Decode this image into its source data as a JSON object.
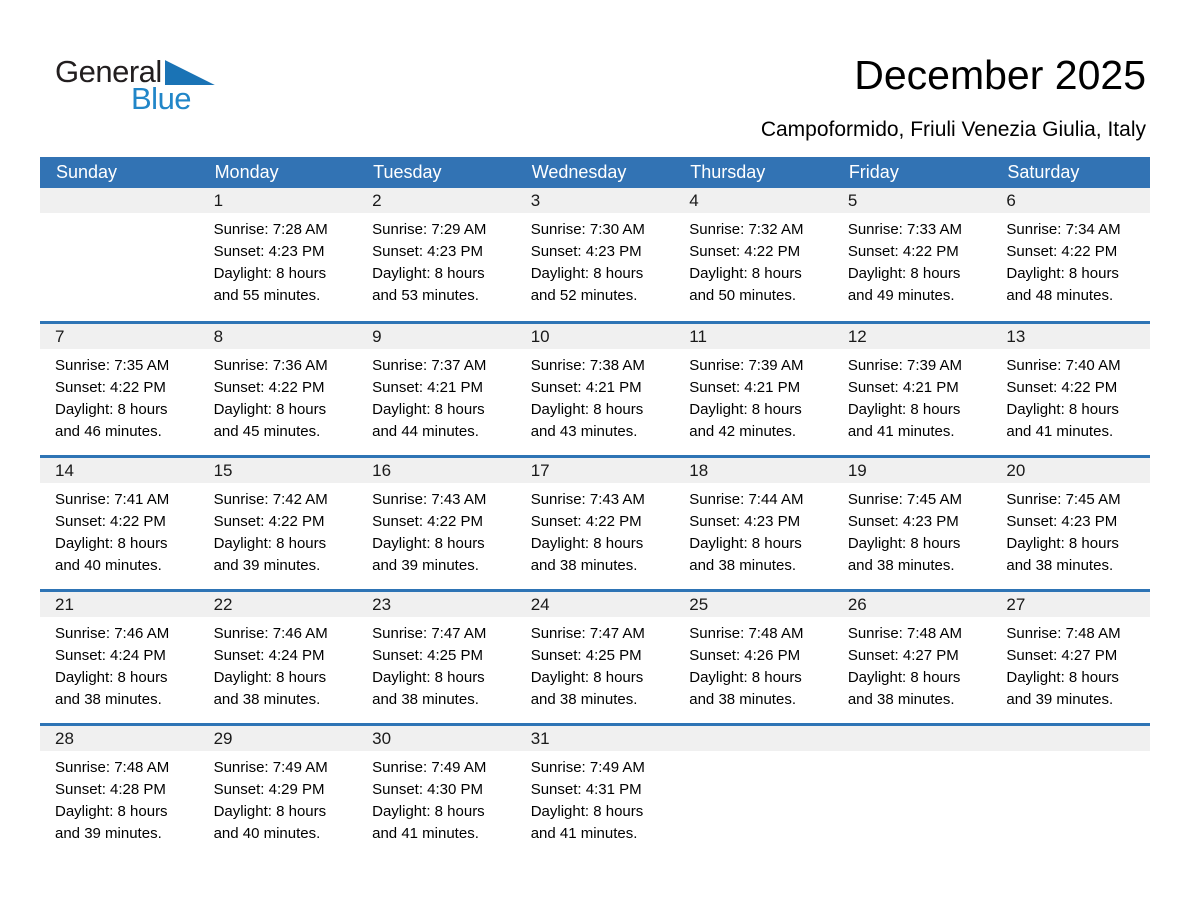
{
  "logo": {
    "general": "General",
    "blue": "Blue"
  },
  "header": {
    "title": "December 2025",
    "subtitle": "Campoformido, Friuli Venezia Giulia, Italy"
  },
  "calendar": {
    "weekdays": [
      "Sunday",
      "Monday",
      "Tuesday",
      "Wednesday",
      "Thursday",
      "Friday",
      "Saturday"
    ],
    "labels": {
      "sunrise": "Sunrise: ",
      "sunset": "Sunset: ",
      "daylight": "Daylight: "
    },
    "weeks": [
      [
        {
          "day": "",
          "sunrise": "",
          "sunset": "",
          "daylight": ""
        },
        {
          "day": "1",
          "sunrise": "7:28 AM",
          "sunset": "4:23 PM",
          "daylight": "8 hours and 55 minutes."
        },
        {
          "day": "2",
          "sunrise": "7:29 AM",
          "sunset": "4:23 PM",
          "daylight": "8 hours and 53 minutes."
        },
        {
          "day": "3",
          "sunrise": "7:30 AM",
          "sunset": "4:23 PM",
          "daylight": "8 hours and 52 minutes."
        },
        {
          "day": "4",
          "sunrise": "7:32 AM",
          "sunset": "4:22 PM",
          "daylight": "8 hours and 50 minutes."
        },
        {
          "day": "5",
          "sunrise": "7:33 AM",
          "sunset": "4:22 PM",
          "daylight": "8 hours and 49 minutes."
        },
        {
          "day": "6",
          "sunrise": "7:34 AM",
          "sunset": "4:22 PM",
          "daylight": "8 hours and 48 minutes."
        }
      ],
      [
        {
          "day": "7",
          "sunrise": "7:35 AM",
          "sunset": "4:22 PM",
          "daylight": "8 hours and 46 minutes."
        },
        {
          "day": "8",
          "sunrise": "7:36 AM",
          "sunset": "4:22 PM",
          "daylight": "8 hours and 45 minutes."
        },
        {
          "day": "9",
          "sunrise": "7:37 AM",
          "sunset": "4:21 PM",
          "daylight": "8 hours and 44 minutes."
        },
        {
          "day": "10",
          "sunrise": "7:38 AM",
          "sunset": "4:21 PM",
          "daylight": "8 hours and 43 minutes."
        },
        {
          "day": "11",
          "sunrise": "7:39 AM",
          "sunset": "4:21 PM",
          "daylight": "8 hours and 42 minutes."
        },
        {
          "day": "12",
          "sunrise": "7:39 AM",
          "sunset": "4:21 PM",
          "daylight": "8 hours and 41 minutes."
        },
        {
          "day": "13",
          "sunrise": "7:40 AM",
          "sunset": "4:22 PM",
          "daylight": "8 hours and 41 minutes."
        }
      ],
      [
        {
          "day": "14",
          "sunrise": "7:41 AM",
          "sunset": "4:22 PM",
          "daylight": "8 hours and 40 minutes."
        },
        {
          "day": "15",
          "sunrise": "7:42 AM",
          "sunset": "4:22 PM",
          "daylight": "8 hours and 39 minutes."
        },
        {
          "day": "16",
          "sunrise": "7:43 AM",
          "sunset": "4:22 PM",
          "daylight": "8 hours and 39 minutes."
        },
        {
          "day": "17",
          "sunrise": "7:43 AM",
          "sunset": "4:22 PM",
          "daylight": "8 hours and 38 minutes."
        },
        {
          "day": "18",
          "sunrise": "7:44 AM",
          "sunset": "4:23 PM",
          "daylight": "8 hours and 38 minutes."
        },
        {
          "day": "19",
          "sunrise": "7:45 AM",
          "sunset": "4:23 PM",
          "daylight": "8 hours and 38 minutes."
        },
        {
          "day": "20",
          "sunrise": "7:45 AM",
          "sunset": "4:23 PM",
          "daylight": "8 hours and 38 minutes."
        }
      ],
      [
        {
          "day": "21",
          "sunrise": "7:46 AM",
          "sunset": "4:24 PM",
          "daylight": "8 hours and 38 minutes."
        },
        {
          "day": "22",
          "sunrise": "7:46 AM",
          "sunset": "4:24 PM",
          "daylight": "8 hours and 38 minutes."
        },
        {
          "day": "23",
          "sunrise": "7:47 AM",
          "sunset": "4:25 PM",
          "daylight": "8 hours and 38 minutes."
        },
        {
          "day": "24",
          "sunrise": "7:47 AM",
          "sunset": "4:25 PM",
          "daylight": "8 hours and 38 minutes."
        },
        {
          "day": "25",
          "sunrise": "7:48 AM",
          "sunset": "4:26 PM",
          "daylight": "8 hours and 38 minutes."
        },
        {
          "day": "26",
          "sunrise": "7:48 AM",
          "sunset": "4:27 PM",
          "daylight": "8 hours and 38 minutes."
        },
        {
          "day": "27",
          "sunrise": "7:48 AM",
          "sunset": "4:27 PM",
          "daylight": "8 hours and 39 minutes."
        }
      ],
      [
        {
          "day": "28",
          "sunrise": "7:48 AM",
          "sunset": "4:28 PM",
          "daylight": "8 hours and 39 minutes."
        },
        {
          "day": "29",
          "sunrise": "7:49 AM",
          "sunset": "4:29 PM",
          "daylight": "8 hours and 40 minutes."
        },
        {
          "day": "30",
          "sunrise": "7:49 AM",
          "sunset": "4:30 PM",
          "daylight": "8 hours and 41 minutes."
        },
        {
          "day": "31",
          "sunrise": "7:49 AM",
          "sunset": "4:31 PM",
          "daylight": "8 hours and 41 minutes."
        },
        {
          "day": "",
          "sunrise": "",
          "sunset": "",
          "daylight": ""
        },
        {
          "day": "",
          "sunrise": "",
          "sunset": "",
          "daylight": ""
        },
        {
          "day": "",
          "sunrise": "",
          "sunset": "",
          "daylight": ""
        }
      ]
    ]
  },
  "colors": {
    "header_blue": "#3273b4",
    "row_border_blue": "#2e74b5",
    "day_strip_gray": "#f0f0f0",
    "logo_blue": "#2186c8",
    "logo_triangle_blue": "#1a73b5"
  }
}
